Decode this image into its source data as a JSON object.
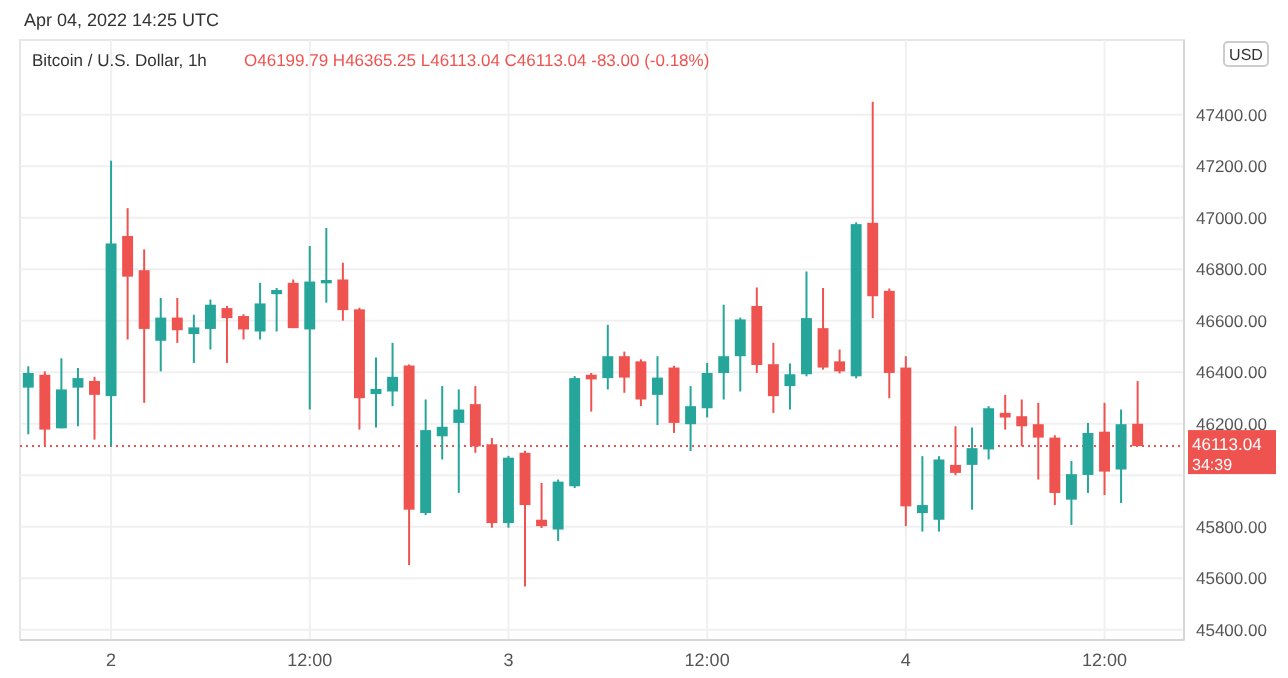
{
  "chart_data": {
    "type": "candlestick",
    "title": "Bitcoin / U.S. Dollar, 1h",
    "annotations": [
      "Apr 04, 2022 14:25 UTC",
      "O46199.79 H46365.25 L46113.04 C46113.04 -83.00 (-0.18%)",
      "USD",
      "34:39"
    ],
    "x": [
      "2022-04-01T19:00",
      "2022-04-01T20:00",
      "2022-04-01T21:00",
      "2022-04-01T22:00",
      "2022-04-01T23:00",
      "2022-04-02T00:00",
      "2022-04-02T01:00",
      "2022-04-02T02:00",
      "2022-04-02T03:00",
      "2022-04-02T04:00",
      "2022-04-02T05:00",
      "2022-04-02T06:00",
      "2022-04-02T07:00",
      "2022-04-02T08:00",
      "2022-04-02T09:00",
      "2022-04-02T10:00",
      "2022-04-02T11:00",
      "2022-04-02T12:00",
      "2022-04-02T13:00",
      "2022-04-02T14:00",
      "2022-04-02T15:00",
      "2022-04-02T16:00",
      "2022-04-02T17:00",
      "2022-04-02T18:00",
      "2022-04-02T19:00",
      "2022-04-02T20:00",
      "2022-04-02T21:00",
      "2022-04-02T22:00",
      "2022-04-02T23:00",
      "2022-04-03T00:00",
      "2022-04-03T01:00",
      "2022-04-03T02:00",
      "2022-04-03T03:00",
      "2022-04-03T04:00",
      "2022-04-03T05:00",
      "2022-04-03T06:00",
      "2022-04-03T07:00",
      "2022-04-03T08:00",
      "2022-04-03T09:00",
      "2022-04-03T10:00",
      "2022-04-03T11:00",
      "2022-04-03T12:00",
      "2022-04-03T13:00",
      "2022-04-03T14:00",
      "2022-04-03T15:00",
      "2022-04-03T16:00",
      "2022-04-03T17:00",
      "2022-04-03T18:00",
      "2022-04-03T19:00",
      "2022-04-03T20:00",
      "2022-04-03T21:00",
      "2022-04-03T22:00",
      "2022-04-03T23:00",
      "2022-04-04T00:00",
      "2022-04-04T01:00",
      "2022-04-04T02:00",
      "2022-04-04T03:00",
      "2022-04-04T04:00",
      "2022-04-04T05:00",
      "2022-04-04T06:00",
      "2022-04-04T07:00",
      "2022-04-04T08:00",
      "2022-04-04T09:00",
      "2022-04-04T10:00",
      "2022-04-04T11:00",
      "2022-04-04T12:00",
      "2022-04-04T13:00",
      "2022-04-04T14:00"
    ],
    "ohlc": [
      [
        46340,
        46423,
        46159,
        46397
      ],
      [
        46390,
        46403,
        46112,
        46177
      ],
      [
        46182,
        46454,
        46182,
        46333
      ],
      [
        46340,
        46416,
        46190,
        46377
      ],
      [
        46366,
        46382,
        46138,
        46312
      ],
      [
        46307,
        47221,
        46112,
        46900
      ],
      [
        46929,
        47037,
        46527,
        46771
      ],
      [
        46796,
        46877,
        46281,
        46568
      ],
      [
        46522,
        46688,
        46403,
        46612
      ],
      [
        46612,
        46688,
        46514,
        46563
      ],
      [
        46548,
        46623,
        46436,
        46574
      ],
      [
        46568,
        46682,
        46488,
        46662
      ],
      [
        46649,
        46657,
        46436,
        46610
      ],
      [
        46618,
        46625,
        46527,
        46566
      ],
      [
        46558,
        46747,
        46527,
        46667
      ],
      [
        46703,
        46727,
        46558,
        46719
      ],
      [
        46747,
        46760,
        46571,
        46571
      ],
      [
        46566,
        46890,
        46255,
        46752
      ],
      [
        46745,
        46960,
        46670,
        46758
      ],
      [
        46760,
        46825,
        46600,
        46641
      ],
      [
        46644,
        46650,
        46177,
        46299
      ],
      [
        46315,
        46457,
        46185,
        46335
      ],
      [
        46325,
        46514,
        46268,
        46382
      ],
      [
        46426,
        46430,
        45651,
        45866
      ],
      [
        45853,
        46294,
        45845,
        46175
      ],
      [
        46151,
        46346,
        46061,
        46188
      ],
      [
        46203,
        46333,
        45931,
        46255
      ],
      [
        46276,
        46346,
        46087,
        46112
      ],
      [
        46120,
        46144,
        45796,
        45814
      ],
      [
        45814,
        46075,
        45796,
        46068
      ],
      [
        46087,
        46095,
        45568,
        45884
      ],
      [
        45827,
        45970,
        45795,
        45802
      ],
      [
        45789,
        45983,
        45745,
        45975
      ],
      [
        45957,
        46385,
        45950,
        46377
      ],
      [
        46390,
        46397,
        46247,
        46372
      ],
      [
        46377,
        46584,
        46333,
        46462
      ],
      [
        46462,
        46480,
        46320,
        46379
      ],
      [
        46442,
        46450,
        46268,
        46294
      ],
      [
        46312,
        46462,
        46195,
        46379
      ],
      [
        46418,
        46425,
        46164,
        46203
      ],
      [
        46198,
        46346,
        46094,
        46268
      ],
      [
        46260,
        46436,
        46224,
        46397
      ],
      [
        46397,
        46662,
        46294,
        46462
      ],
      [
        46462,
        46612,
        46325,
        46605
      ],
      [
        46657,
        46729,
        46397,
        46428
      ],
      [
        46431,
        46514,
        46242,
        46307
      ],
      [
        46346,
        46434,
        46255,
        46392
      ],
      [
        46392,
        46791,
        46384,
        46610
      ],
      [
        46571,
        46727,
        46410,
        46418
      ],
      [
        46442,
        46488,
        46395,
        46403
      ],
      [
        46384,
        46982,
        46376,
        46975
      ],
      [
        46980,
        47450,
        46610,
        46695
      ],
      [
        46716,
        46725,
        46299,
        46397
      ],
      [
        46418,
        46462,
        45802,
        45879
      ],
      [
        45853,
        46074,
        45781,
        45884
      ],
      [
        45827,
        46074,
        45781,
        46061
      ],
      [
        46040,
        46190,
        46000,
        46009
      ],
      [
        46040,
        46185,
        45866,
        46105
      ],
      [
        46100,
        46268,
        46061,
        46260
      ],
      [
        46242,
        46312,
        46177,
        46224
      ],
      [
        46229,
        46294,
        46112,
        46190
      ],
      [
        46198,
        46281,
        45983,
        46146
      ],
      [
        46146,
        46155,
        45884,
        45931
      ],
      [
        45905,
        46055,
        45807,
        46004
      ],
      [
        46001,
        46203,
        45931,
        46164
      ],
      [
        46169,
        46281,
        45923,
        46014
      ],
      [
        46022,
        46255,
        45892,
        46198
      ],
      [
        46199.79,
        46365.25,
        46113.04,
        46113.04
      ]
    ],
    "colors": [
      "#26a69a",
      "#ef5350",
      "#26a69a",
      "#26a69a",
      "#ef5350",
      "#26a69a",
      "#ef5350",
      "#ef5350",
      "#26a69a",
      "#ef5350",
      "#26a69a",
      "#26a69a",
      "#ef5350",
      "#ef5350",
      "#26a69a",
      "#26a69a",
      "#ef5350",
      "#26a69a",
      "#26a69a",
      "#ef5350",
      "#ef5350",
      "#26a69a",
      "#26a69a",
      "#ef5350",
      "#26a69a",
      "#26a69a",
      "#26a69a",
      "#ef5350",
      "#ef5350",
      "#26a69a",
      "#ef5350",
      "#ef5350",
      "#26a69a",
      "#26a69a",
      "#ef5350",
      "#26a69a",
      "#ef5350",
      "#ef5350",
      "#26a69a",
      "#ef5350",
      "#26a69a",
      "#26a69a",
      "#26a69a",
      "#26a69a",
      "#ef5350",
      "#ef5350",
      "#26a69a",
      "#26a69a",
      "#ef5350",
      "#ef5350",
      "#26a69a",
      "#ef5350",
      "#ef5350",
      "#ef5350",
      "#26a69a",
      "#26a69a",
      "#ef5350",
      "#26a69a",
      "#26a69a",
      "#ef5350",
      "#ef5350",
      "#ef5350",
      "#ef5350",
      "#26a69a",
      "#26a69a",
      "#ef5350",
      "#26a69a",
      "#ef5350"
    ],
    "xlim": [
      "2022-04-01T18:30",
      "2022-04-04T16:48"
    ],
    "xticks": [
      {
        "value": "2022-04-02",
        "label": "2"
      },
      {
        "value": "2022-04-02T12:00",
        "label": "12:00"
      },
      {
        "value": "2022-04-03",
        "label": "3"
      },
      {
        "value": "2022-04-03T12:00",
        "label": "12:00"
      },
      {
        "value": "2022-04-04",
        "label": "4"
      },
      {
        "value": "2022-04-04T12:00",
        "label": "12:00"
      }
    ],
    "ylim": [
      45360,
      47690
    ],
    "yticks": [
      {
        "value": 45400,
        "label": "45400.00"
      },
      {
        "value": 45600,
        "label": "45600.00"
      },
      {
        "value": 45800,
        "label": "45800.00"
      },
      {
        "value": 46000,
        "label": null
      },
      {
        "value": 46200,
        "label": "46200.00"
      },
      {
        "value": 46400,
        "label": "46400.00"
      },
      {
        "value": 46600,
        "label": "46600.00"
      },
      {
        "value": 46800,
        "label": "46800.00"
      },
      {
        "value": 47000,
        "label": "47000.00"
      },
      {
        "value": 47200,
        "label": "47200.00"
      },
      {
        "value": 47400,
        "label": "47400.00"
      }
    ],
    "grid": true,
    "ref_lines": [
      {
        "axis": "y",
        "value": 46113.04,
        "label": "46113.04",
        "color": "#ef5350",
        "line_style": "dotted"
      }
    ]
  }
}
